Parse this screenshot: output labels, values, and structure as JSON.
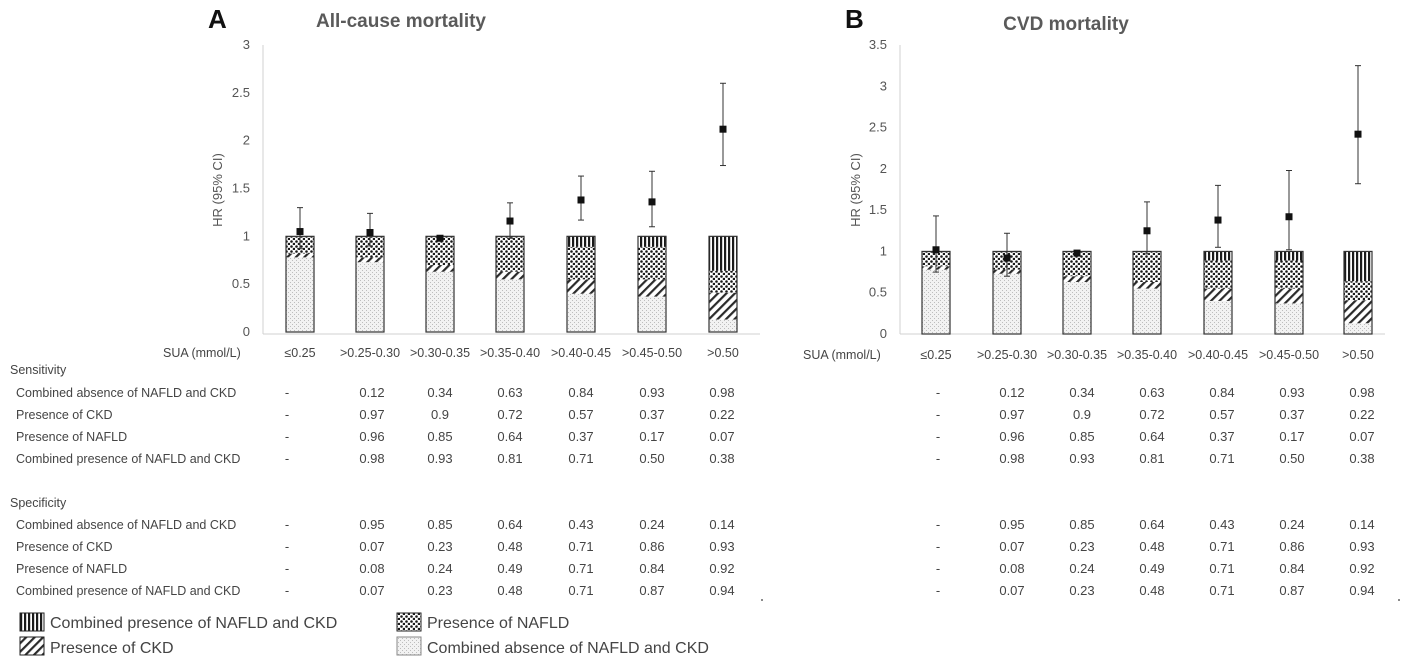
{
  "chart_data": [
    {
      "type": "bar",
      "panel": "A",
      "title": "All-cause mortality",
      "ylabel": "HR (95% CI)",
      "xlabel": "SUA (mmol/L)",
      "ylim": [
        0,
        3
      ],
      "yticks": [
        "0",
        "0.5",
        "1",
        "1.5",
        "2",
        "2.5",
        "3"
      ],
      "ytick_values": [
        0,
        0.5,
        1,
        1.5,
        2,
        2.5,
        3
      ],
      "categories": [
        "≤0.25",
        ">0.25-0.30",
        ">0.30-0.35",
        ">0.35-0.40",
        ">0.40-0.45",
        ">0.45-0.50",
        ">0.50"
      ],
      "series": [
        {
          "name": "Combined absence of NAFLD and CKD",
          "values": [
            0.78,
            0.73,
            0.63,
            0.55,
            0.4,
            0.37,
            0.13
          ]
        },
        {
          "name": "Presence of CKD",
          "values": [
            0.04,
            0.05,
            0.07,
            0.08,
            0.15,
            0.18,
            0.28
          ]
        },
        {
          "name": "Presence of NAFLD",
          "values": [
            0.18,
            0.22,
            0.3,
            0.37,
            0.34,
            0.34,
            0.23
          ]
        },
        {
          "name": "Combined presence of NAFLD and CKD",
          "values": [
            0.0,
            0.0,
            0.0,
            0.0,
            0.11,
            0.11,
            0.36
          ]
        }
      ],
      "hr": [
        {
          "est": 1.05,
          "lo": 0.87,
          "hi": 1.3
        },
        {
          "est": 1.04,
          "lo": 0.9,
          "hi": 1.24
        },
        {
          "est": 0.98,
          "lo": 0.96,
          "hi": 1.0
        },
        {
          "est": 1.16,
          "lo": 0.98,
          "hi": 1.35
        },
        {
          "est": 1.38,
          "lo": 1.17,
          "hi": 1.63
        },
        {
          "est": 1.36,
          "lo": 1.1,
          "hi": 1.68
        },
        {
          "est": 2.12,
          "lo": 1.74,
          "hi": 2.6
        }
      ]
    },
    {
      "type": "bar",
      "panel": "B",
      "title": "CVD mortality",
      "ylabel": "HR (95% CI)",
      "xlabel": "SUA (mmol/L)",
      "ylim": [
        0,
        3.5
      ],
      "yticks": [
        "0",
        "0.5",
        "1",
        "1.5",
        "2",
        "2.5",
        "3",
        "3.5"
      ],
      "ytick_values": [
        0,
        0.5,
        1,
        1.5,
        2,
        2.5,
        3,
        3.5
      ],
      "categories": [
        "≤0.25",
        ">0.25-0.30",
        ">0.30-0.35",
        ">0.35-0.40",
        ">0.40-0.45",
        ">0.45-0.50",
        ">0.50"
      ],
      "series": [
        {
          "name": "Combined absence of NAFLD and CKD",
          "values": [
            0.78,
            0.73,
            0.63,
            0.55,
            0.4,
            0.37,
            0.13
          ]
        },
        {
          "name": "Presence of CKD",
          "values": [
            0.04,
            0.05,
            0.07,
            0.08,
            0.15,
            0.18,
            0.28
          ]
        },
        {
          "name": "Presence of NAFLD",
          "values": [
            0.18,
            0.22,
            0.3,
            0.37,
            0.34,
            0.34,
            0.23
          ]
        },
        {
          "name": "Combined presence of NAFLD and CKD",
          "values": [
            0.0,
            0.0,
            0.0,
            0.0,
            0.11,
            0.11,
            0.36
          ]
        }
      ],
      "hr": [
        {
          "est": 1.02,
          "lo": 0.75,
          "hi": 1.43
        },
        {
          "est": 0.92,
          "lo": 0.7,
          "hi": 1.22
        },
        {
          "est": 0.98,
          "lo": 0.96,
          "hi": 1.0
        },
        {
          "est": 1.25,
          "lo": 0.97,
          "hi": 1.6
        },
        {
          "est": 1.38,
          "lo": 1.05,
          "hi": 1.8
        },
        {
          "est": 1.42,
          "lo": 1.02,
          "hi": 1.98
        },
        {
          "est": 2.42,
          "lo": 1.82,
          "hi": 3.25
        }
      ]
    }
  ],
  "table": {
    "sensitivity_label": "Sensitivity",
    "specificity_label": "Specificity",
    "sensitivity": [
      {
        "label": "Combined absence of NAFLD and CKD",
        "values": [
          "-",
          "0.12",
          "0.34",
          "0.63",
          "0.84",
          "0.93",
          "0.98"
        ]
      },
      {
        "label": "Presence of CKD",
        "values": [
          "-",
          "0.97",
          "0.9",
          "0.72",
          "0.57",
          "0.37",
          "0.22"
        ]
      },
      {
        "label": "Presence of NAFLD",
        "values": [
          "-",
          "0.96",
          "0.85",
          "0.64",
          "0.37",
          "0.17",
          "0.07"
        ]
      },
      {
        "label": "Combined presence of NAFLD and CKD",
        "values": [
          "-",
          "0.98",
          "0.93",
          "0.81",
          "0.71",
          "0.50",
          "0.38"
        ]
      }
    ],
    "specificity": [
      {
        "label": "Combined absence of NAFLD and CKD",
        "values": [
          "-",
          "0.95",
          "0.85",
          "0.64",
          "0.43",
          "0.24",
          "0.14"
        ]
      },
      {
        "label": "Presence of CKD",
        "values": [
          "-",
          "0.07",
          "0.23",
          "0.48",
          "0.71",
          "0.86",
          "0.93"
        ]
      },
      {
        "label": "Presence of NAFLD",
        "values": [
          "-",
          "0.08",
          "0.24",
          "0.49",
          "0.71",
          "0.84",
          "0.92"
        ]
      },
      {
        "label": "Combined presence of NAFLD and CKD",
        "values": [
          "-",
          "0.07",
          "0.23",
          "0.48",
          "0.71",
          "0.87",
          "0.94"
        ]
      }
    ]
  },
  "legend": [
    {
      "label": "Combined presence of NAFLD and CKD",
      "pattern": "vertical"
    },
    {
      "label": "Presence of NAFLD",
      "pattern": "dots"
    },
    {
      "label": "Presence of CKD",
      "pattern": "diagonal"
    },
    {
      "label": "Combined absence of NAFLD and CKD",
      "pattern": "fine"
    }
  ],
  "colors": {
    "axis": "#d0d0d0",
    "text": "#444444",
    "ink": "#111111"
  }
}
